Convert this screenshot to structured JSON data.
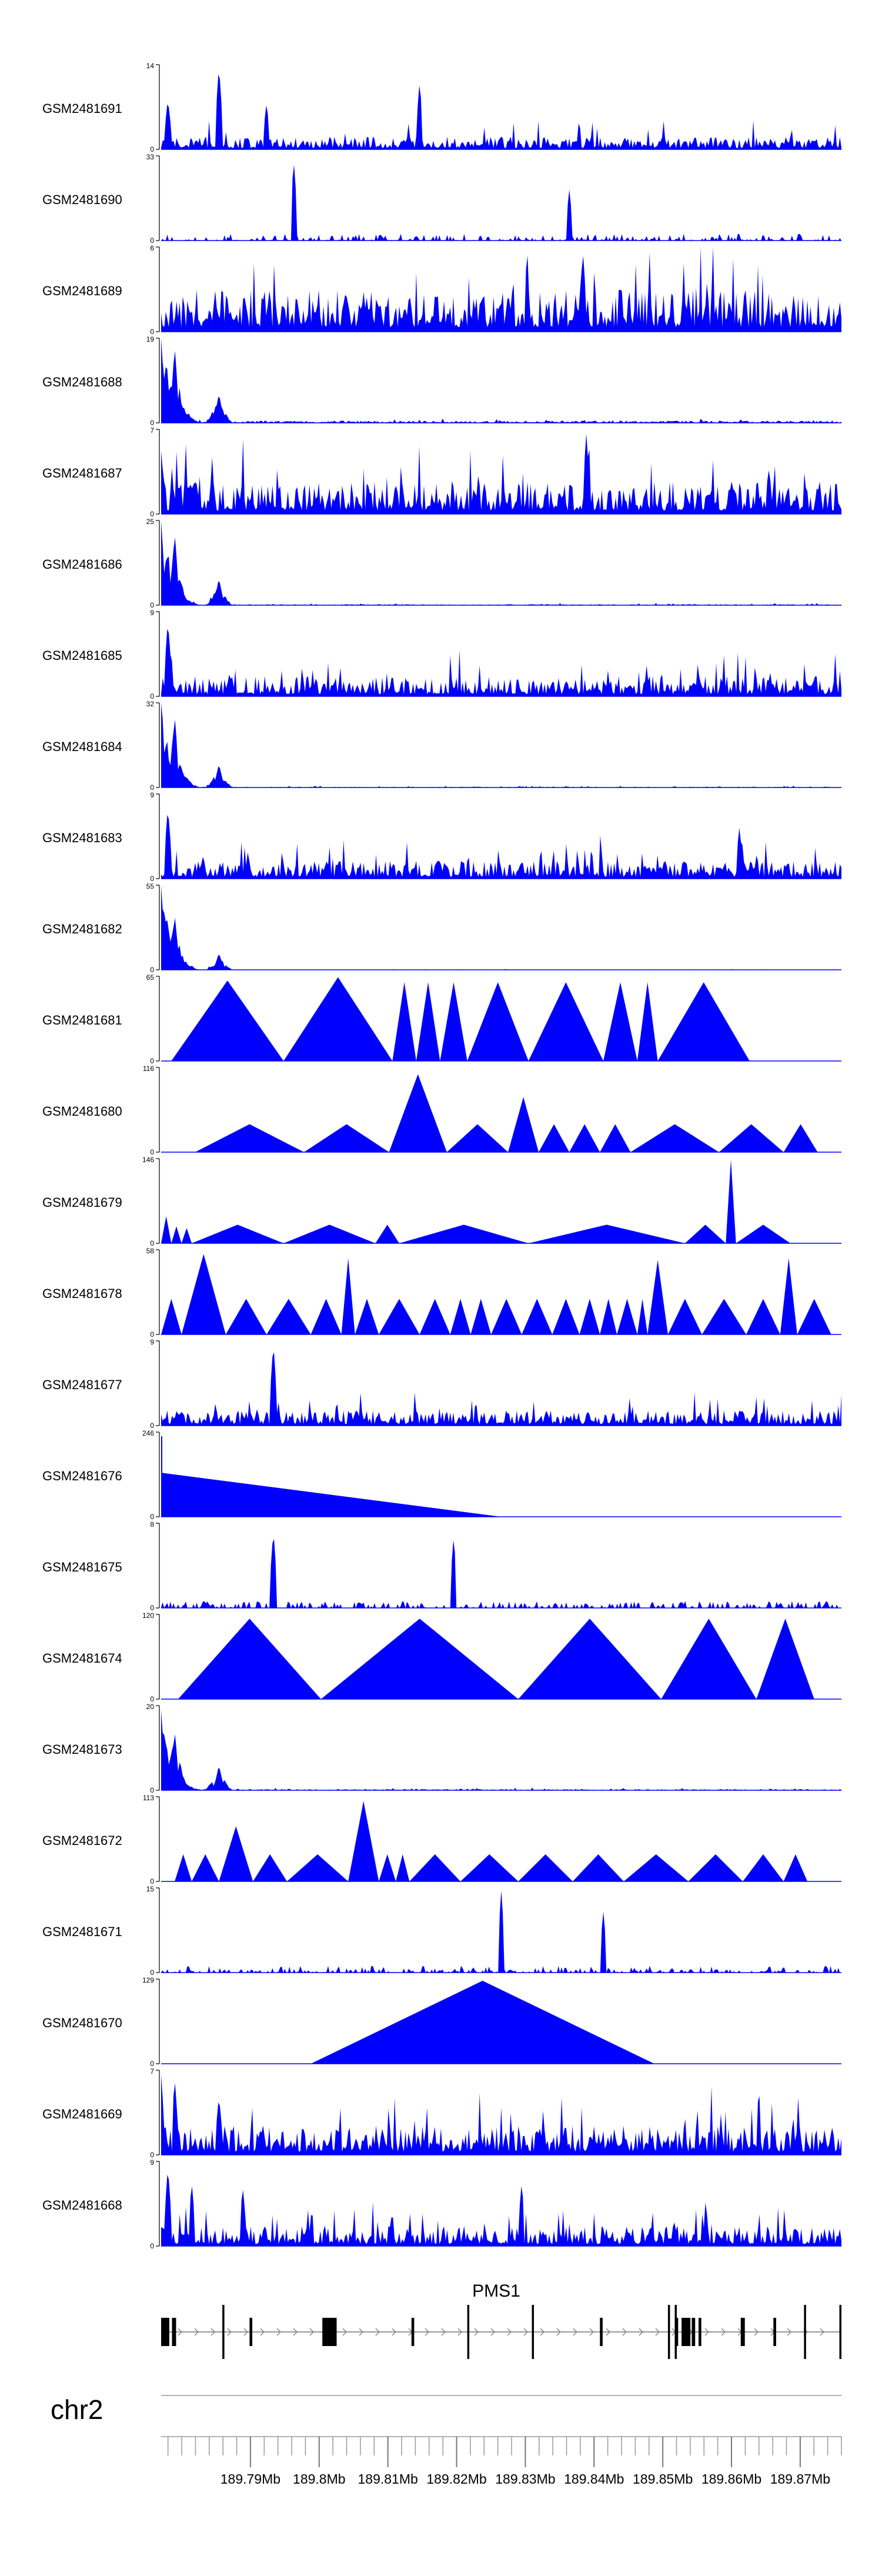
{
  "chart_data": {
    "type": "area",
    "chromosome": "chr2",
    "gene": "PMS1",
    "tracks": [
      {
        "name": "GSM2481691",
        "ymax": 14,
        "ymin": 0,
        "profile": "noise",
        "base": 1.6,
        "peaks": [
          [
            0.01,
            0.6
          ],
          [
            0.085,
            1.0
          ],
          [
            0.155,
            0.55
          ],
          [
            0.38,
            0.8
          ]
        ]
      },
      {
        "name": "GSM2481690",
        "ymax": 33,
        "ymin": 0,
        "profile": "spiky",
        "base": 0.22,
        "peaks": [
          [
            0.195,
            0.95
          ],
          [
            0.6,
            0.6
          ]
        ]
      },
      {
        "name": "GSM2481689",
        "ymax": 6,
        "ymin": 0,
        "profile": "noise",
        "base": 2.2,
        "peaks": [
          [
            0.62,
            0.95
          ]
        ]
      },
      {
        "name": "GSM2481688",
        "ymax": 19,
        "ymin": 0,
        "profile": "decay",
        "base": 0.6,
        "peaks": [
          [
            0.0,
            1.0
          ],
          [
            0.02,
            0.9
          ],
          [
            0.085,
            0.35
          ]
        ]
      },
      {
        "name": "GSM2481687",
        "ymax": 7,
        "ymin": 0,
        "profile": "noise",
        "base": 2.0,
        "peaks": [
          [
            0.0,
            0.75
          ],
          [
            0.625,
            0.95
          ]
        ]
      },
      {
        "name": "GSM2481686",
        "ymax": 25,
        "ymin": 0,
        "profile": "decay",
        "base": 0.35,
        "peaks": [
          [
            0.0,
            1.0
          ],
          [
            0.02,
            0.85
          ],
          [
            0.085,
            0.32
          ]
        ]
      },
      {
        "name": "GSM2481685",
        "ymax": 9,
        "ymin": 0,
        "profile": "noise",
        "base": 1.6,
        "peaks": [
          [
            0.01,
            0.9
          ]
        ]
      },
      {
        "name": "GSM2481684",
        "ymax": 32,
        "ymin": 0,
        "profile": "decay",
        "base": 0.35,
        "peaks": [
          [
            0.0,
            1.0
          ],
          [
            0.02,
            0.85
          ],
          [
            0.085,
            0.28
          ]
        ]
      },
      {
        "name": "GSM2481683",
        "ymax": 9,
        "ymin": 0,
        "profile": "noise",
        "base": 1.4,
        "peaks": [
          [
            0.01,
            0.85
          ],
          [
            0.85,
            0.6
          ]
        ]
      },
      {
        "name": "GSM2481682",
        "ymax": 55,
        "ymin": 0,
        "profile": "decay",
        "base": 0.25,
        "peaks": [
          [
            0.0,
            1.0
          ],
          [
            0.02,
            0.65
          ],
          [
            0.085,
            0.2
          ]
        ]
      },
      {
        "name": "GSM2481681",
        "ymax": 65,
        "ymin": 0,
        "profile": "triangles",
        "triangles": [
          [
            0.015,
            0.95,
            0.18
          ],
          [
            0.18,
            0.99,
            0.34
          ],
          [
            0.34,
            0.93,
            0.375
          ],
          [
            0.375,
            0.93,
            0.41
          ],
          [
            0.41,
            0.93,
            0.45
          ],
          [
            0.45,
            0.93,
            0.54
          ],
          [
            0.54,
            0.93,
            0.65
          ],
          [
            0.65,
            0.93,
            0.7
          ],
          [
            0.7,
            0.93,
            0.73
          ],
          [
            0.73,
            0.93,
            0.865
          ]
        ]
      },
      {
        "name": "GSM2481680",
        "ymax": 116,
        "ymin": 0,
        "profile": "triangles",
        "triangles": [
          [
            0.05,
            0.33,
            0.21
          ],
          [
            0.21,
            0.33,
            0.335
          ],
          [
            0.335,
            0.92,
            0.42
          ],
          [
            0.42,
            0.33,
            0.51
          ],
          [
            0.51,
            0.65,
            0.555
          ],
          [
            0.555,
            0.33,
            0.6
          ],
          [
            0.6,
            0.33,
            0.645
          ],
          [
            0.645,
            0.33,
            0.69
          ],
          [
            0.69,
            0.33,
            0.82
          ],
          [
            0.82,
            0.33,
            0.915
          ],
          [
            0.915,
            0.33,
            0.965
          ]
        ]
      },
      {
        "name": "GSM2481679",
        "ymax": 146,
        "ymin": 0,
        "profile": "triangles",
        "triangles": [
          [
            0.0,
            0.32,
            0.015
          ],
          [
            0.015,
            0.2,
            0.03
          ],
          [
            0.03,
            0.18,
            0.045
          ],
          [
            0.045,
            0.22,
            0.18
          ],
          [
            0.18,
            0.22,
            0.315
          ],
          [
            0.315,
            0.22,
            0.35
          ],
          [
            0.35,
            0.22,
            0.54
          ],
          [
            0.54,
            0.22,
            0.77
          ],
          [
            0.77,
            0.22,
            0.83
          ],
          [
            0.83,
            0.99,
            0.845
          ],
          [
            0.845,
            0.22,
            0.925
          ]
        ]
      },
      {
        "name": "GSM2481678",
        "ymax": 58,
        "ymin": 0,
        "profile": "triangles",
        "triangles": [
          [
            0.0,
            0.42,
            0.03
          ],
          [
            0.03,
            0.95,
            0.095
          ],
          [
            0.095,
            0.42,
            0.155
          ],
          [
            0.155,
            0.42,
            0.22
          ],
          [
            0.22,
            0.42,
            0.265
          ],
          [
            0.265,
            0.9,
            0.285
          ],
          [
            0.285,
            0.42,
            0.32
          ],
          [
            0.32,
            0.42,
            0.38
          ],
          [
            0.38,
            0.42,
            0.425
          ],
          [
            0.425,
            0.42,
            0.455
          ],
          [
            0.455,
            0.42,
            0.485
          ],
          [
            0.485,
            0.42,
            0.53
          ],
          [
            0.53,
            0.42,
            0.575
          ],
          [
            0.575,
            0.42,
            0.615
          ],
          [
            0.615,
            0.42,
            0.645
          ],
          [
            0.645,
            0.42,
            0.67
          ],
          [
            0.67,
            0.42,
            0.7
          ],
          [
            0.7,
            0.42,
            0.715
          ],
          [
            0.715,
            0.88,
            0.745
          ],
          [
            0.745,
            0.42,
            0.795
          ],
          [
            0.795,
            0.42,
            0.86
          ],
          [
            0.86,
            0.42,
            0.91
          ],
          [
            0.91,
            0.9,
            0.935
          ],
          [
            0.935,
            0.42,
            0.985
          ]
        ]
      },
      {
        "name": "GSM2481677",
        "ymax": 9,
        "ymin": 0,
        "profile": "noise",
        "base": 1.2,
        "peaks": [
          [
            0.165,
            0.98
          ]
        ]
      },
      {
        "name": "GSM2481676",
        "ymax": 246,
        "ymin": 0,
        "profile": "ramp",
        "rampEnd": 0.5,
        "rampHeight": 0.52,
        "spikeHeight": 0.95
      },
      {
        "name": "GSM2481675",
        "ymax": 8,
        "ymin": 0,
        "profile": "spiky",
        "base": 0.3,
        "peaks": [
          [
            0.165,
            0.92
          ],
          [
            0.43,
            0.85
          ]
        ]
      },
      {
        "name": "GSM2481674",
        "ymax": 120,
        "ymin": 0,
        "profile": "triangles",
        "triangles": [
          [
            0.025,
            0.95,
            0.235
          ],
          [
            0.235,
            0.95,
            0.525
          ],
          [
            0.525,
            0.95,
            0.735
          ],
          [
            0.735,
            0.95,
            0.875
          ],
          [
            0.875,
            0.95,
            0.96
          ]
        ]
      },
      {
        "name": "GSM2481673",
        "ymax": 20,
        "ymin": 0,
        "profile": "decay",
        "base": 0.35,
        "peaks": [
          [
            0.0,
            0.95
          ],
          [
            0.02,
            0.7
          ],
          [
            0.085,
            0.3
          ]
        ]
      },
      {
        "name": "GSM2481672",
        "ymax": 113,
        "ymin": 0,
        "profile": "triangles",
        "triangles": [
          [
            0.02,
            0.32,
            0.045
          ],
          [
            0.045,
            0.32,
            0.085
          ],
          [
            0.085,
            0.65,
            0.135
          ],
          [
            0.135,
            0.32,
            0.185
          ],
          [
            0.185,
            0.32,
            0.275
          ],
          [
            0.275,
            0.95,
            0.32
          ],
          [
            0.32,
            0.32,
            0.345
          ],
          [
            0.345,
            0.32,
            0.365
          ],
          [
            0.365,
            0.32,
            0.44
          ],
          [
            0.44,
            0.32,
            0.525
          ],
          [
            0.525,
            0.32,
            0.605
          ],
          [
            0.605,
            0.32,
            0.68
          ],
          [
            0.68,
            0.32,
            0.775
          ],
          [
            0.775,
            0.32,
            0.855
          ],
          [
            0.855,
            0.32,
            0.915
          ],
          [
            0.915,
            0.32,
            0.95
          ]
        ]
      },
      {
        "name": "GSM2481671",
        "ymax": 15,
        "ymin": 0,
        "profile": "spiky",
        "base": 0.25,
        "peaks": [
          [
            0.5,
            0.97
          ],
          [
            0.65,
            0.72
          ]
        ]
      },
      {
        "name": "GSM2481670",
        "ymax": 129,
        "ymin": 0,
        "profile": "triangles",
        "triangles": [
          [
            0.22,
            0.98,
            0.725
          ]
        ]
      },
      {
        "name": "GSM2481669",
        "ymax": 7,
        "ymin": 0,
        "profile": "noise",
        "base": 1.8,
        "peaks": [
          [
            0.0,
            0.95
          ],
          [
            0.02,
            0.9
          ],
          [
            0.085,
            0.7
          ]
        ]
      },
      {
        "name": "GSM2481668",
        "ymax": 9,
        "ymin": 0,
        "profile": "noise",
        "base": 1.6,
        "peaks": [
          [
            0.01,
            0.95
          ],
          [
            0.045,
            0.75
          ],
          [
            0.12,
            0.7
          ],
          [
            0.53,
            0.75
          ]
        ]
      }
    ],
    "gene_model": {
      "name": "PMS1",
      "strand": "+",
      "exons": [
        [
          0.0,
          0.012
        ],
        [
          0.016,
          0.022
        ],
        [
          0.09,
          0.093
        ],
        [
          0.13,
          0.134
        ],
        [
          0.237,
          0.245
        ],
        [
          0.245,
          0.258
        ],
        [
          0.368,
          0.372
        ],
        [
          0.45,
          0.453
        ],
        [
          0.545,
          0.548
        ],
        [
          0.645,
          0.649
        ],
        [
          0.745,
          0.748
        ],
        [
          0.755,
          0.758
        ],
        [
          0.755,
          0.76
        ],
        [
          0.765,
          0.778
        ],
        [
          0.78,
          0.785
        ],
        [
          0.79,
          0.794
        ],
        [
          0.852,
          0.858
        ],
        [
          0.9,
          0.904
        ],
        [
          0.945,
          0.948
        ],
        [
          0.997,
          1.0
        ]
      ]
    },
    "x_axis": {
      "unit": "Mb",
      "range": [
        189.777,
        189.876
      ],
      "tick_labels": [
        "189.79Mb",
        "189.8Mb",
        "189.81Mb",
        "189.82Mb",
        "189.83Mb",
        "189.84Mb",
        "189.85Mb",
        "189.86Mb",
        "189.87Mb"
      ],
      "tick_values": [
        189.79,
        189.8,
        189.81,
        189.82,
        189.83,
        189.84,
        189.85,
        189.86,
        189.87
      ],
      "minor_step": 0.002
    },
    "fill_color": "#0000ff",
    "axis_color": "#000000",
    "gene_color": "#000000",
    "grid": false
  }
}
